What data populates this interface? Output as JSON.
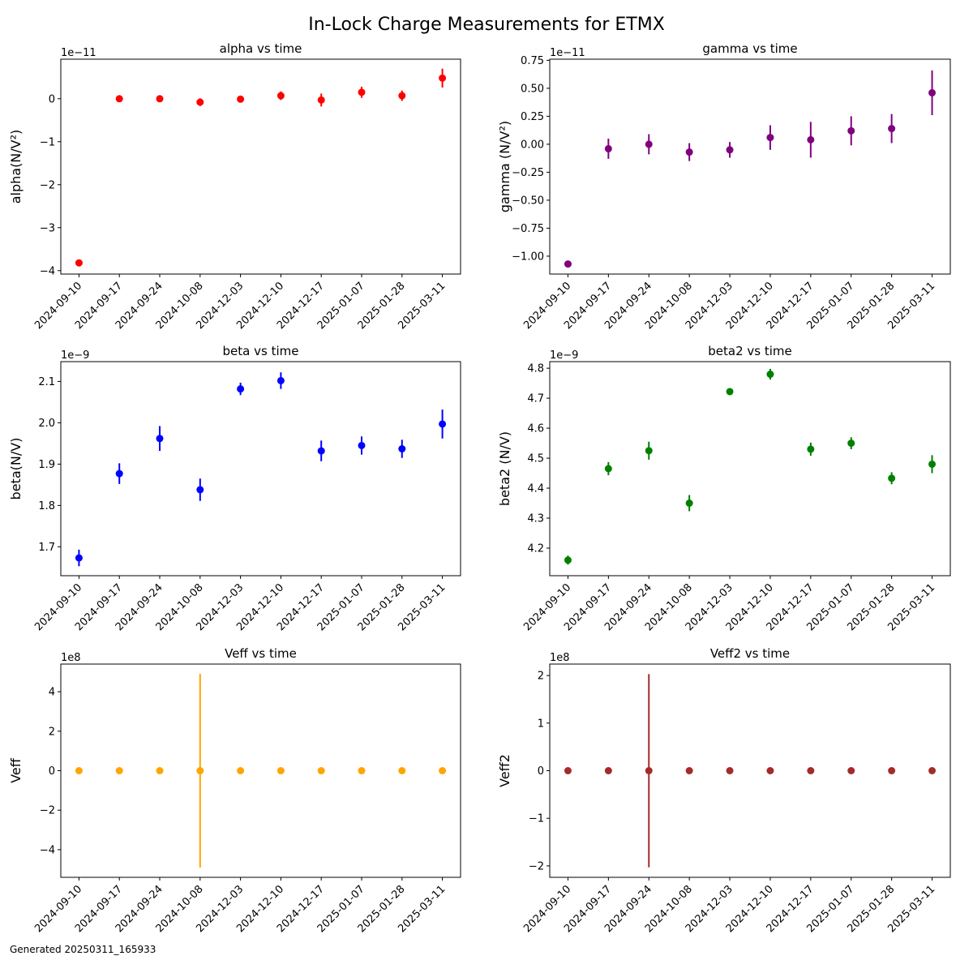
{
  "figure": {
    "title": "In-Lock Charge Measurements for ETMX",
    "footer": "Generated 20250311_165933"
  },
  "chart_data": [
    {
      "type": "scatter",
      "title": "alpha vs time",
      "xlabel": "",
      "ylabel": "alpha(N/V²)",
      "exponent": "1e−11",
      "x": [
        "2024-09-10",
        "2024-09-17",
        "2024-09-24",
        "2024-10-08",
        "2024-12-03",
        "2024-12-10",
        "2024-12-17",
        "2025-01-07",
        "2025-01-28",
        "2025-03-11"
      ],
      "y": [
        -3.82,
        0.0,
        0.0,
        -0.08,
        -0.01,
        0.07,
        -0.03,
        0.15,
        0.07,
        0.48
      ],
      "yerr": [
        0.05,
        0.08,
        0.07,
        0.09,
        0.06,
        0.1,
        0.15,
        0.13,
        0.12,
        0.22
      ],
      "ylim": [
        -4.08,
        0.92
      ],
      "yticks": [
        -4,
        -3,
        -2,
        -1,
        0
      ],
      "color": "#ff0000"
    },
    {
      "type": "scatter",
      "title": "gamma vs time",
      "xlabel": "",
      "ylabel": "gamma (N/V²)",
      "exponent": "1e−11",
      "x": [
        "2024-09-10",
        "2024-09-17",
        "2024-09-24",
        "2024-10-08",
        "2024-12-03",
        "2024-12-10",
        "2024-12-17",
        "2025-01-07",
        "2025-01-28",
        "2025-03-11"
      ],
      "y": [
        -1.07,
        -0.04,
        0.0,
        -0.07,
        -0.05,
        0.06,
        0.04,
        0.12,
        0.14,
        0.46
      ],
      "yerr": [
        0.02,
        0.09,
        0.09,
        0.08,
        0.07,
        0.11,
        0.16,
        0.13,
        0.13,
        0.2
      ],
      "ylim": [
        -1.16,
        0.76
      ],
      "yticks": [
        -1.0,
        -0.75,
        -0.5,
        -0.25,
        0.0,
        0.25,
        0.5,
        0.75
      ],
      "ytick_decimals": 2,
      "color": "#800080"
    },
    {
      "type": "scatter",
      "title": "beta vs time",
      "xlabel": "",
      "ylabel": "beta(N/V)",
      "exponent": "1e−9",
      "x": [
        "2024-09-10",
        "2024-09-17",
        "2024-09-24",
        "2024-10-08",
        "2024-12-03",
        "2024-12-10",
        "2024-12-17",
        "2025-01-07",
        "2025-01-28",
        "2025-03-11"
      ],
      "y": [
        1.673,
        1.877,
        1.962,
        1.838,
        2.082,
        2.102,
        1.932,
        1.945,
        1.937,
        1.997
      ],
      "yerr": [
        0.02,
        0.025,
        0.03,
        0.027,
        0.015,
        0.02,
        0.025,
        0.022,
        0.022,
        0.035
      ],
      "ylim": [
        1.63,
        2.148
      ],
      "yticks": [
        1.7,
        1.8,
        1.9,
        2.0,
        2.1
      ],
      "ytick_decimals": 1,
      "color": "#0000ff"
    },
    {
      "type": "scatter",
      "title": "beta2 vs time",
      "xlabel": "",
      "ylabel": "beta2 (N/V)",
      "exponent": "1e−9",
      "x": [
        "2024-09-10",
        "2024-09-17",
        "2024-09-24",
        "2024-10-08",
        "2024-12-03",
        "2024-12-10",
        "2024-12-17",
        "2025-01-07",
        "2025-01-28",
        "2025-03-11"
      ],
      "y": [
        4.16,
        4.465,
        4.525,
        4.35,
        4.722,
        4.78,
        4.53,
        4.55,
        4.433,
        4.48
      ],
      "yerr": [
        0.015,
        0.022,
        0.03,
        0.027,
        0.01,
        0.018,
        0.022,
        0.02,
        0.02,
        0.03
      ],
      "ylim": [
        4.108,
        4.822
      ],
      "yticks": [
        4.2,
        4.3,
        4.4,
        4.5,
        4.6,
        4.7,
        4.8
      ],
      "ytick_decimals": 1,
      "color": "#008000"
    },
    {
      "type": "scatter",
      "title": "Veff vs time",
      "xlabel": "",
      "ylabel": "Veff",
      "exponent": "1e8",
      "x": [
        "2024-09-10",
        "2024-09-17",
        "2024-09-24",
        "2024-10-08",
        "2024-12-03",
        "2024-12-10",
        "2024-12-17",
        "2025-01-07",
        "2025-01-28",
        "2025-03-11"
      ],
      "y": [
        0,
        0,
        0,
        0,
        0,
        0,
        0,
        0,
        0,
        0
      ],
      "yerr": [
        0,
        0,
        0,
        4.9,
        0,
        0,
        0,
        0,
        0,
        0
      ],
      "ylim": [
        -5.4,
        5.4
      ],
      "yticks": [
        -4,
        -2,
        0,
        2,
        4
      ],
      "color": "#ffa500"
    },
    {
      "type": "scatter",
      "title": "Veff2 vs time",
      "xlabel": "",
      "ylabel": "Veff2",
      "exponent": "1e8",
      "x": [
        "2024-09-10",
        "2024-09-17",
        "2024-09-24",
        "2024-10-08",
        "2024-12-03",
        "2024-12-10",
        "2024-12-17",
        "2025-01-07",
        "2025-01-28",
        "2025-03-11"
      ],
      "y": [
        0,
        0,
        0,
        0,
        0,
        0,
        0,
        0,
        0,
        0
      ],
      "yerr": [
        0,
        0,
        2.03,
        0,
        0,
        0,
        0,
        0,
        0,
        0
      ],
      "ylim": [
        -2.24,
        2.24
      ],
      "yticks": [
        -2,
        -1,
        0,
        1,
        2
      ],
      "color": "#a52a2a"
    }
  ]
}
